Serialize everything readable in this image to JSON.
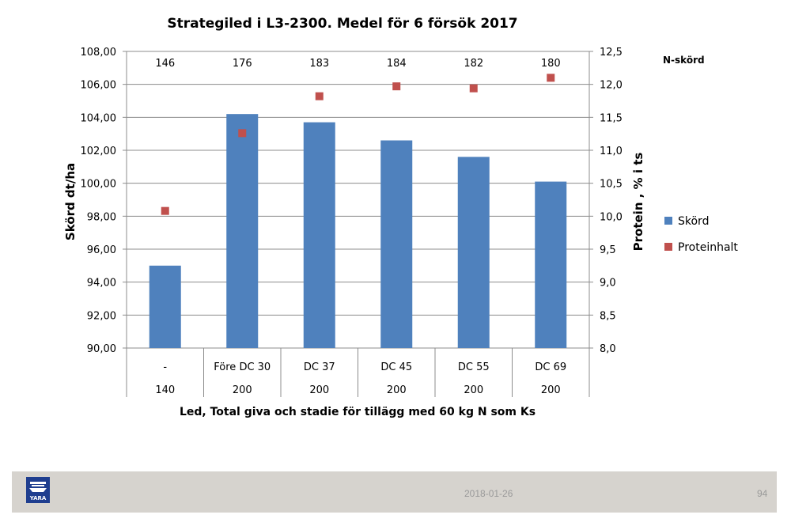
{
  "chart_data": {
    "type": "bar",
    "title": "Strategiled i L3-2300. Medel för 6 försök 2017",
    "xlabel": "Led, Total giva och stadie för tillägg med 60 kg N som Ks",
    "ylabel_left": "Skörd dt/ha",
    "ylabel_right": "Protein , % i ts",
    "categories": [
      "-",
      "Före DC 30",
      "DC 37",
      "DC 45",
      "DC 55",
      "DC 69"
    ],
    "total_giva": [
      "140",
      "200",
      "200",
      "200",
      "200",
      "200"
    ],
    "n_skord_label": "N-skörd",
    "n_skord": [
      "146",
      "176",
      "183",
      "184",
      "182",
      "180"
    ],
    "ylim_left": [
      90,
      108
    ],
    "yticks_left": [
      "90,00",
      "92,00",
      "94,00",
      "96,00",
      "98,00",
      "100,00",
      "102,00",
      "104,00",
      "106,00",
      "108,00"
    ],
    "ylim_right": [
      8.0,
      12.5
    ],
    "yticks_right": [
      "8,0",
      "8,5",
      "9,0",
      "9,5",
      "10,0",
      "10,5",
      "11,0",
      "11,5",
      "12,0",
      "12,5"
    ],
    "series": [
      {
        "name": "Skörd",
        "type": "bar",
        "axis": "left",
        "color": "#4f81bd",
        "values": [
          95.0,
          104.2,
          103.7,
          102.6,
          101.6,
          100.1
        ]
      },
      {
        "name": "Proteinhalt",
        "type": "scatter",
        "axis": "right",
        "color": "#c0504d",
        "values": [
          10.08,
          11.26,
          11.82,
          11.97,
          11.94,
          12.1
        ]
      }
    ],
    "grid": true,
    "legend_position": "right"
  },
  "footer": {
    "date": "2018-01-26",
    "page": "94",
    "logo_text": "YARA"
  }
}
